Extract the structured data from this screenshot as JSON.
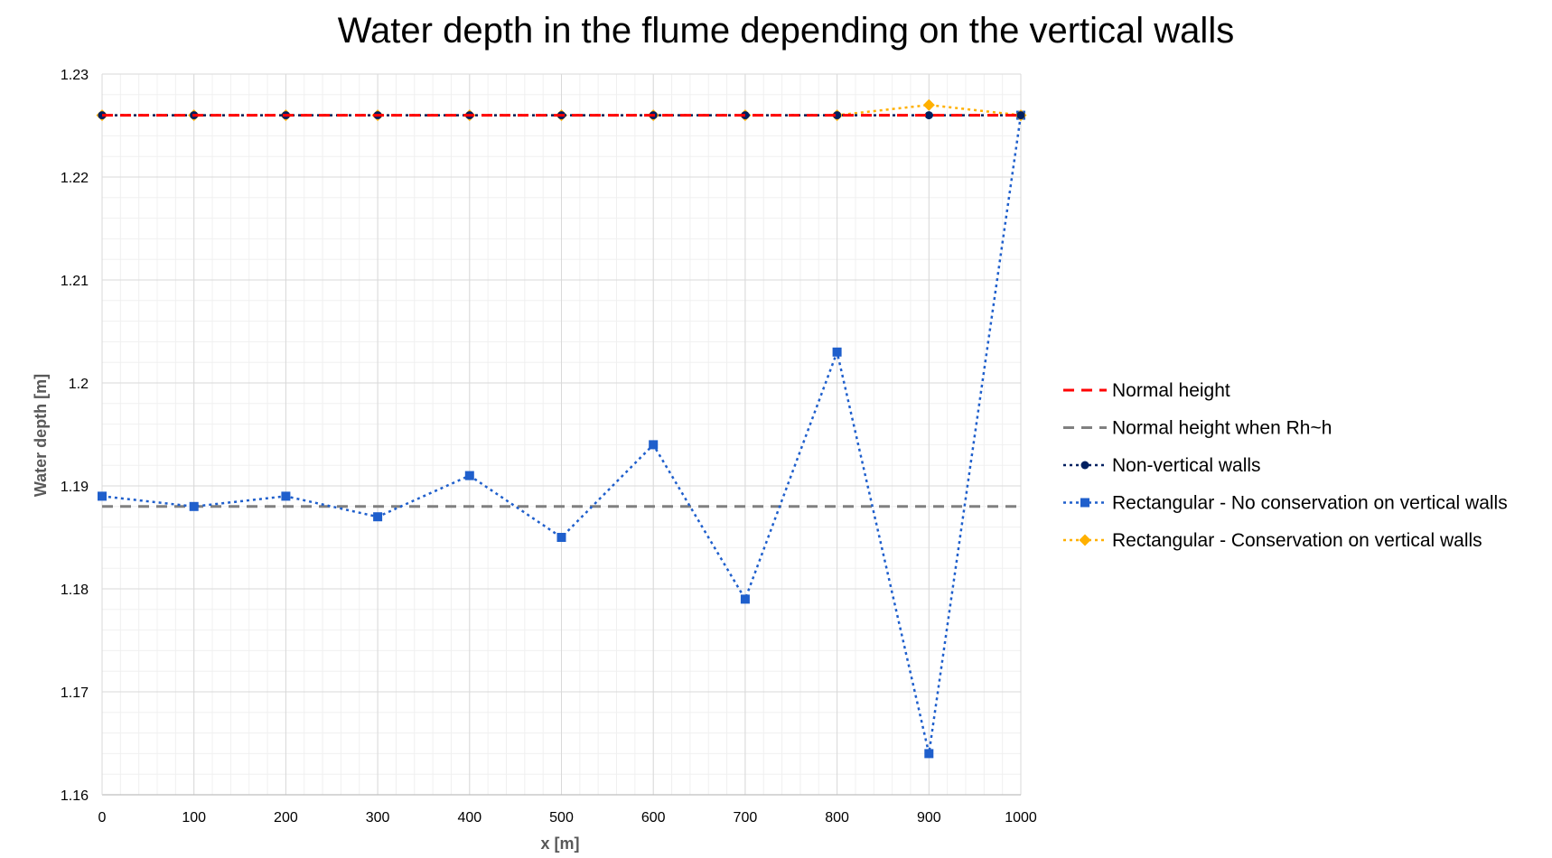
{
  "chart_data": {
    "type": "line",
    "title": "Water depth in the flume depending on the vertical walls",
    "xlabel": "x [m]",
    "ylabel": "Water depth [m]",
    "x": [
      0,
      100,
      200,
      300,
      400,
      500,
      600,
      700,
      800,
      900,
      1000
    ],
    "xlim": [
      0,
      1000
    ],
    "ylim": [
      1.16,
      1.23
    ],
    "x_ticks": [
      "0",
      "100",
      "200",
      "300",
      "400",
      "500",
      "600",
      "700",
      "800",
      "900",
      "1000"
    ],
    "y_ticks": [
      "1.16",
      "1.17",
      "1.18",
      "1.19",
      "1.2",
      "1.21",
      "1.22",
      "1.23"
    ],
    "grid": true,
    "legend_position": "right",
    "series": [
      {
        "name": "Normal height",
        "color": "#FF0000",
        "line_style": "dashed",
        "marker": "none",
        "values": [
          1.226,
          1.226,
          1.226,
          1.226,
          1.226,
          1.226,
          1.226,
          1.226,
          1.226,
          1.226,
          1.226
        ]
      },
      {
        "name": "Normal height when Rh~h",
        "color": "#808080",
        "line_style": "dashed",
        "marker": "none",
        "values": [
          1.188,
          1.188,
          1.188,
          1.188,
          1.188,
          1.188,
          1.188,
          1.188,
          1.188,
          1.188,
          1.188
        ]
      },
      {
        "name": "Non-vertical walls",
        "color": "#002060",
        "line_style": "dotted",
        "marker": "circle",
        "values": [
          1.226,
          1.226,
          1.226,
          1.226,
          1.226,
          1.226,
          1.226,
          1.226,
          1.226,
          1.226,
          1.226
        ]
      },
      {
        "name": "Rectangular - No conservation on vertical walls",
        "color": "#1F5FCC",
        "line_style": "dotted",
        "marker": "square",
        "values": [
          1.189,
          1.188,
          1.189,
          1.187,
          1.191,
          1.185,
          1.194,
          1.179,
          1.203,
          1.164,
          1.226
        ]
      },
      {
        "name": "Rectangular - Conservation on vertical walls",
        "color": "#FFB000",
        "line_style": "dotted",
        "marker": "diamond",
        "values": [
          1.226,
          1.226,
          1.226,
          1.226,
          1.226,
          1.226,
          1.226,
          1.226,
          1.226,
          1.227,
          1.226
        ]
      }
    ]
  }
}
